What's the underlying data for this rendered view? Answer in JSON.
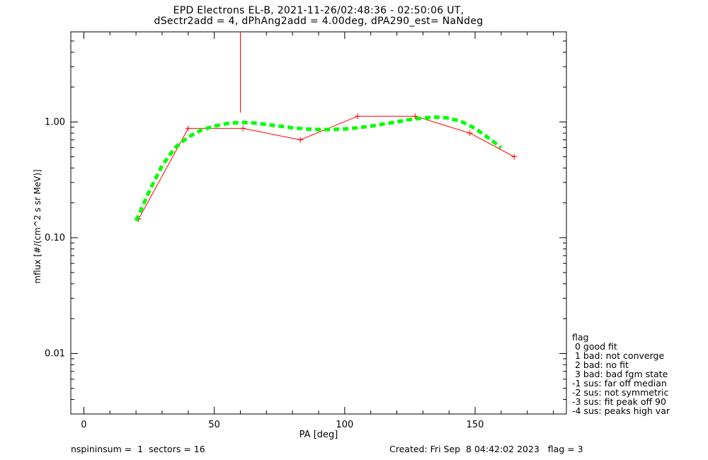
{
  "chart_data": {
    "type": "line",
    "title_lines": [
      "EPD Electrons EL-B, 2021-11-26/02:48:36 - 02:50:06 UT,",
      "dSectr2add = 4, dPhAng2add = 4.00deg, dPA290_est=    NaNdeg"
    ],
    "xlabel": "PA [deg]",
    "ylabel": "mflux [#/(cm^2 s sr MeV)]",
    "xlim": [
      -5,
      185
    ],
    "ylim": [
      0.003,
      6.0
    ],
    "yscale": "log",
    "x_ticks": [
      0,
      50,
      100,
      150
    ],
    "x_tick_labels": [
      "0",
      "50",
      "100",
      "150"
    ],
    "y_ticks": [
      0.01,
      0.1,
      1.0
    ],
    "y_tick_labels": [
      "0.01",
      "0.10",
      "1.00"
    ],
    "grid": false,
    "series": [
      {
        "color": "#ff0000",
        "style": "line+plus",
        "x": [
          21,
          40,
          61,
          83,
          105,
          127,
          148,
          165
        ],
        "y": [
          0.145,
          0.88,
          0.88,
          0.7,
          1.12,
          1.12,
          0.8,
          0.5
        ]
      },
      {
        "color": "#00ff00",
        "style": "dashed-thick",
        "x": [
          20,
          25,
          30,
          35,
          40,
          45,
          50,
          55,
          60,
          65,
          70,
          75,
          80,
          85,
          90,
          95,
          100,
          105,
          110,
          115,
          120,
          125,
          130,
          135,
          140,
          145,
          150,
          155,
          160
        ],
        "y": [
          0.14,
          0.25,
          0.42,
          0.6,
          0.74,
          0.85,
          0.92,
          0.97,
          0.99,
          0.98,
          0.95,
          0.92,
          0.89,
          0.87,
          0.86,
          0.86,
          0.87,
          0.89,
          0.92,
          0.96,
          1.0,
          1.05,
          1.08,
          1.1,
          1.08,
          1.0,
          0.88,
          0.73,
          0.6
        ]
      },
      {
        "color": "#ff0000",
        "style": "line",
        "x": [
          60,
          60
        ],
        "y": [
          1.2,
          6.0
        ]
      }
    ]
  },
  "legend": {
    "header": "flag",
    "items": [
      " 0 good fit",
      " 1 bad: not converge",
      " 2 bad: no fit",
      " 3 bad: bad fgm state",
      "-1 sus: far off median",
      "-2 sus: not symmetric",
      "-3 sus: fit peak off 90",
      "-4 sus: peaks high var"
    ]
  },
  "footer": {
    "left": "nspininsum =  1  sectors = 16",
    "right": "Created: Fri Sep  8 04:42:02 2023   flag = 3"
  }
}
